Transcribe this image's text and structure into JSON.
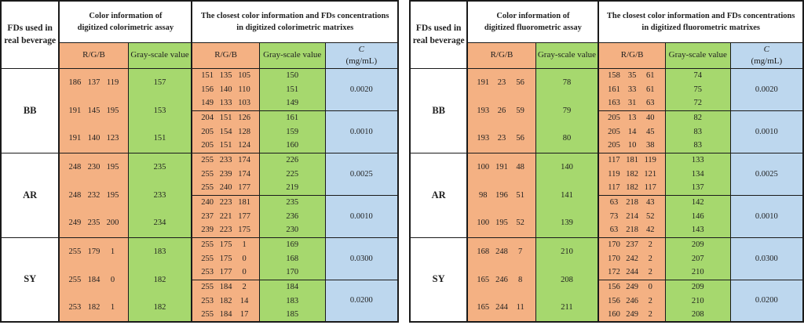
{
  "colors": {
    "header_orange": "#F4B183",
    "header_green": "#A6D86E",
    "header_blue": "#BDD7EE",
    "border": "#1A1A1A"
  },
  "tables": [
    {
      "name": "colorimetric",
      "fd_column_header_lines": [
        "FDs used in",
        "real beverage"
      ],
      "assay_header_lines": [
        "Color information of",
        "digitized colorimetric assay"
      ],
      "matrix_header_lines": [
        "The closest color information and FDs concentrations",
        "in digitized colorimetric matrixes"
      ],
      "subheaders": {
        "rgb_assay": "R/G/B",
        "gray_assay": "Gray-scale value",
        "rgb_matrix": "R/G/B",
        "gray_matrix": "Gray-scale value",
        "c_symbol": "C",
        "c_unit": "(mg/mL)"
      },
      "fd_groups": [
        {
          "fd": "BB",
          "assay": [
            {
              "rgb": [
                "186",
                "137",
                "119"
              ],
              "gray": "157"
            },
            {
              "rgb": [
                "191",
                "145",
                "195"
              ],
              "gray": "153"
            },
            {
              "rgb": [
                "191",
                "140",
                "123"
              ],
              "gray": "151"
            }
          ],
          "matrix_groups": [
            {
              "c": "0.0020",
              "rows": [
                {
                  "rgb": [
                    "151",
                    "135",
                    "105"
                  ],
                  "gray": "150"
                },
                {
                  "rgb": [
                    "156",
                    "140",
                    "110"
                  ],
                  "gray": "151"
                },
                {
                  "rgb": [
                    "149",
                    "133",
                    "103"
                  ],
                  "gray": "149"
                }
              ]
            },
            {
              "c": "0.0010",
              "rows": [
                {
                  "rgb": [
                    "204",
                    "151",
                    "126"
                  ],
                  "gray": "161"
                },
                {
                  "rgb": [
                    "205",
                    "154",
                    "128"
                  ],
                  "gray": "159"
                },
                {
                  "rgb": [
                    "205",
                    "151",
                    "124"
                  ],
                  "gray": "160"
                }
              ]
            }
          ]
        },
        {
          "fd": "AR",
          "assay": [
            {
              "rgb": [
                "248",
                "230",
                "195"
              ],
              "gray": "235"
            },
            {
              "rgb": [
                "248",
                "232",
                "195"
              ],
              "gray": "233"
            },
            {
              "rgb": [
                "249",
                "235",
                "200"
              ],
              "gray": "234"
            }
          ],
          "matrix_groups": [
            {
              "c": "0.0025",
              "rows": [
                {
                  "rgb": [
                    "255",
                    "233",
                    "174"
                  ],
                  "gray": "226"
                },
                {
                  "rgb": [
                    "255",
                    "239",
                    "174"
                  ],
                  "gray": "225"
                },
                {
                  "rgb": [
                    "255",
                    "240",
                    "177"
                  ],
                  "gray": "219"
                }
              ]
            },
            {
              "c": "0.0010",
              "rows": [
                {
                  "rgb": [
                    "240",
                    "223",
                    "181"
                  ],
                  "gray": "235"
                },
                {
                  "rgb": [
                    "237",
                    "221",
                    "177"
                  ],
                  "gray": "236"
                },
                {
                  "rgb": [
                    "239",
                    "223",
                    "175"
                  ],
                  "gray": "230"
                }
              ]
            }
          ]
        },
        {
          "fd": "SY",
          "assay": [
            {
              "rgb": [
                "255",
                "179",
                "1"
              ],
              "gray": "183"
            },
            {
              "rgb": [
                "255",
                "184",
                "0"
              ],
              "gray": "182"
            },
            {
              "rgb": [
                "253",
                "182",
                "1"
              ],
              "gray": "182"
            }
          ],
          "matrix_groups": [
            {
              "c": "0.0300",
              "rows": [
                {
                  "rgb": [
                    "255",
                    "175",
                    "1"
                  ],
                  "gray": "169"
                },
                {
                  "rgb": [
                    "255",
                    "175",
                    "0"
                  ],
                  "gray": "168"
                },
                {
                  "rgb": [
                    "253",
                    "177",
                    "0"
                  ],
                  "gray": "170"
                }
              ]
            },
            {
              "c": "0.0200",
              "rows": [
                {
                  "rgb": [
                    "255",
                    "184",
                    "2"
                  ],
                  "gray": "184"
                },
                {
                  "rgb": [
                    "253",
                    "182",
                    "14"
                  ],
                  "gray": "183"
                },
                {
                  "rgb": [
                    "255",
                    "184",
                    "17"
                  ],
                  "gray": "185"
                }
              ]
            }
          ]
        }
      ]
    },
    {
      "name": "fluorometric",
      "fd_column_header_lines": [
        "FDs used in",
        "real beverage"
      ],
      "assay_header_lines": [
        "Color information of",
        "digitized fluorometric assay"
      ],
      "matrix_header_lines": [
        "The closest color information and FDs concentrations",
        "in digitized fluorometric matrixes"
      ],
      "subheaders": {
        "rgb_assay": "R/G/B",
        "gray_assay": "Gray-scale value",
        "rgb_matrix": "R/G/B",
        "gray_matrix": "Gray-scale value",
        "c_symbol": "C",
        "c_unit": "(mg/mL)"
      },
      "fd_groups": [
        {
          "fd": "BB",
          "assay": [
            {
              "rgb": [
                "191",
                "23",
                "56"
              ],
              "gray": "78"
            },
            {
              "rgb": [
                "193",
                "26",
                "59"
              ],
              "gray": "79"
            },
            {
              "rgb": [
                "193",
                "23",
                "56"
              ],
              "gray": "80"
            }
          ],
          "matrix_groups": [
            {
              "c": "0.0020",
              "rows": [
                {
                  "rgb": [
                    "158",
                    "35",
                    "61"
                  ],
                  "gray": "74"
                },
                {
                  "rgb": [
                    "161",
                    "33",
                    "61"
                  ],
                  "gray": "75"
                },
                {
                  "rgb": [
                    "163",
                    "31",
                    "63"
                  ],
                  "gray": "72"
                }
              ]
            },
            {
              "c": "0.0010",
              "rows": [
                {
                  "rgb": [
                    "205",
                    "13",
                    "40"
                  ],
                  "gray": "82"
                },
                {
                  "rgb": [
                    "205",
                    "14",
                    "45"
                  ],
                  "gray": "83"
                },
                {
                  "rgb": [
                    "205",
                    "10",
                    "38"
                  ],
                  "gray": "83"
                }
              ]
            }
          ]
        },
        {
          "fd": "AR",
          "assay": [
            {
              "rgb": [
                "100",
                "191",
                "48"
              ],
              "gray": "140"
            },
            {
              "rgb": [
                "98",
                "196",
                "51"
              ],
              "gray": "141"
            },
            {
              "rgb": [
                "100",
                "195",
                "52"
              ],
              "gray": "139"
            }
          ],
          "matrix_groups": [
            {
              "c": "0.0025",
              "rows": [
                {
                  "rgb": [
                    "117",
                    "181",
                    "119"
                  ],
                  "gray": "133"
                },
                {
                  "rgb": [
                    "119",
                    "182",
                    "121"
                  ],
                  "gray": "134"
                },
                {
                  "rgb": [
                    "117",
                    "182",
                    "117"
                  ],
                  "gray": "137"
                }
              ]
            },
            {
              "c": "0.0010",
              "rows": [
                {
                  "rgb": [
                    "63",
                    "218",
                    "43"
                  ],
                  "gray": "142"
                },
                {
                  "rgb": [
                    "73",
                    "214",
                    "52"
                  ],
                  "gray": "146"
                },
                {
                  "rgb": [
                    "63",
                    "218",
                    "42"
                  ],
                  "gray": "143"
                }
              ]
            }
          ]
        },
        {
          "fd": "SY",
          "assay": [
            {
              "rgb": [
                "168",
                "248",
                "7"
              ],
              "gray": "210"
            },
            {
              "rgb": [
                "165",
                "246",
                "8"
              ],
              "gray": "208"
            },
            {
              "rgb": [
                "165",
                "244",
                "11"
              ],
              "gray": "211"
            }
          ],
          "matrix_groups": [
            {
              "c": "0.0300",
              "rows": [
                {
                  "rgb": [
                    "170",
                    "237",
                    "2"
                  ],
                  "gray": "209"
                },
                {
                  "rgb": [
                    "170",
                    "242",
                    "2"
                  ],
                  "gray": "207"
                },
                {
                  "rgb": [
                    "172",
                    "244",
                    "2"
                  ],
                  "gray": "210"
                }
              ]
            },
            {
              "c": "0.0200",
              "rows": [
                {
                  "rgb": [
                    "156",
                    "249",
                    "0"
                  ],
                  "gray": "209"
                },
                {
                  "rgb": [
                    "156",
                    "246",
                    "2"
                  ],
                  "gray": "210"
                },
                {
                  "rgb": [
                    "160",
                    "249",
                    "2"
                  ],
                  "gray": "208"
                }
              ]
            }
          ]
        }
      ]
    }
  ]
}
